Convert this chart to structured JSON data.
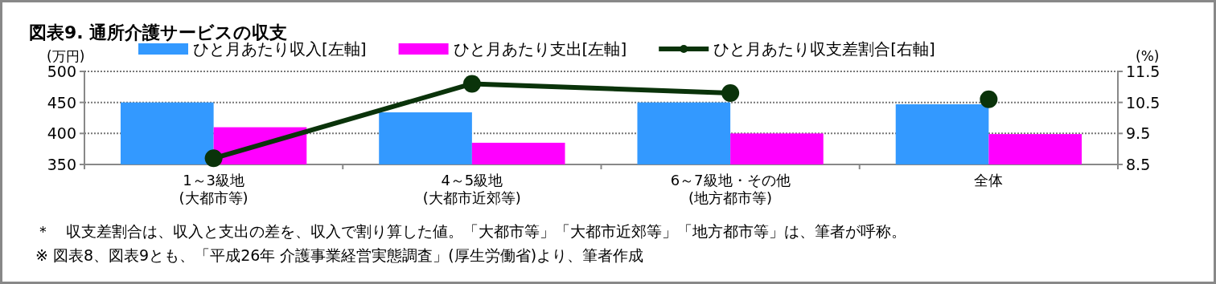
{
  "chart_data": {
    "type": "bar",
    "title": "図表9. 通所介護サービスの収支",
    "ylabel": "(万円)",
    "y2label": "(%)",
    "categories": [
      "1～3級地\n(大都市等)",
      "4～5級地\n(大都市近郊等)",
      "6～7級地・その他\n(地方都市等)",
      "全体"
    ],
    "series": [
      {
        "name": "ひと月あたり収入[左軸]",
        "color": "#3399ff",
        "values": [
          450,
          434,
          450,
          447
        ]
      },
      {
        "name": "ひと月あたり支出[左軸]",
        "color": "#ff00ff",
        "values": [
          410,
          385,
          400,
          399
        ]
      },
      {
        "name": "ひと月あたり収支差割合[右軸]",
        "type": "line",
        "axis": "y2",
        "color": "#0a330a",
        "marker": "circle",
        "values": [
          8.7,
          11.1,
          10.8,
          null
        ]
      },
      {
        "type": "scatter",
        "axis": "y2",
        "color": "#0a330a",
        "marker": "circle",
        "values": [
          null,
          null,
          null,
          10.6
        ]
      }
    ],
    "ylim": [
      350,
      500
    ],
    "yticks": [
      350,
      400,
      450,
      500
    ],
    "y2lim": [
      8.5,
      11.5
    ],
    "y2ticks": [
      8.5,
      9.5,
      10.5,
      11.5
    ],
    "grid": "y",
    "legend": "top",
    "annotations": [
      "＊　収支差割合は、収入と支出の差を、収入で割り算した値。「大都市等」「大都市近郊等」「地方都市等」は、筆者が呼称。",
      "※ 図表8、図表9とも、「平成26年 介護事業経営実態調査」(厚生労働省)より、筆者作成"
    ]
  }
}
